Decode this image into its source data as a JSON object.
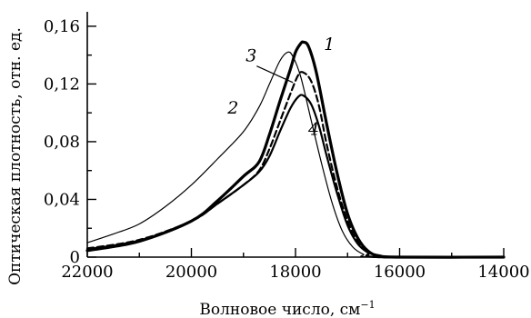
{
  "chart_data": {
    "type": "line",
    "xlabel": "Волновое число, см",
    "xlabel_sup": "−1",
    "ylabel": "Оптическая плотность, отн. ед.",
    "xlim": [
      22000,
      14000
    ],
    "ylim": [
      0,
      0.17
    ],
    "x_ticks": [
      22000,
      20000,
      18000,
      16000,
      14000
    ],
    "x_tick_labels": [
      "22000",
      "20000",
      "18000",
      "16000",
      "14000"
    ],
    "y_ticks": [
      0,
      0.04,
      0.08,
      0.12,
      0.16
    ],
    "y_tick_labels": [
      "0",
      "0,04",
      "0,08",
      "0,12",
      "0,16"
    ],
    "grid": false,
    "series": [
      {
        "name": "1",
        "style": "solid-thick",
        "points": [
          [
            22000,
            0.0045
          ],
          [
            21000,
            0.011
          ],
          [
            20000,
            0.025
          ],
          [
            19500,
            0.039
          ],
          [
            19000,
            0.056
          ],
          [
            18700,
            0.066
          ],
          [
            18500,
            0.085
          ],
          [
            18300,
            0.108
          ],
          [
            18100,
            0.13
          ],
          [
            18000,
            0.142
          ],
          [
            17900,
            0.148
          ],
          [
            17850,
            0.149
          ],
          [
            17750,
            0.146
          ],
          [
            17600,
            0.128
          ],
          [
            17400,
            0.092
          ],
          [
            17200,
            0.058
          ],
          [
            17000,
            0.03
          ],
          [
            16800,
            0.013
          ],
          [
            16600,
            0.004
          ],
          [
            16400,
            0.001
          ],
          [
            16000,
            0.0
          ],
          [
            14000,
            0.0
          ]
        ]
      },
      {
        "name": "2",
        "style": "solid-thin",
        "points": [
          [
            22000,
            0.01
          ],
          [
            21500,
            0.016
          ],
          [
            21000,
            0.023
          ],
          [
            20500,
            0.035
          ],
          [
            20000,
            0.05
          ],
          [
            19500,
            0.068
          ],
          [
            19000,
            0.087
          ],
          [
            18700,
            0.104
          ],
          [
            18500,
            0.12
          ],
          [
            18300,
            0.136
          ],
          [
            18150,
            0.142
          ],
          [
            18050,
            0.139
          ],
          [
            17900,
            0.125
          ],
          [
            17700,
            0.095
          ],
          [
            17500,
            0.065
          ],
          [
            17300,
            0.038
          ],
          [
            17100,
            0.018
          ],
          [
            16900,
            0.007
          ],
          [
            16700,
            0.002
          ],
          [
            16500,
            0.0
          ],
          [
            14000,
            0.0
          ]
        ]
      },
      {
        "name": "3",
        "style": "dashed",
        "points": [
          [
            22000,
            0.006
          ],
          [
            21000,
            0.012
          ],
          [
            20000,
            0.025
          ],
          [
            19500,
            0.037
          ],
          [
            19000,
            0.05
          ],
          [
            18700,
            0.06
          ],
          [
            18500,
            0.075
          ],
          [
            18300,
            0.094
          ],
          [
            18100,
            0.113
          ],
          [
            17950,
            0.126
          ],
          [
            17850,
            0.128
          ],
          [
            17700,
            0.122
          ],
          [
            17550,
            0.105
          ],
          [
            17400,
            0.078
          ],
          [
            17200,
            0.048
          ],
          [
            17000,
            0.025
          ],
          [
            16800,
            0.01
          ],
          [
            16600,
            0.003
          ],
          [
            16400,
            0.0
          ],
          [
            14000,
            0.0
          ]
        ]
      },
      {
        "name": "4",
        "style": "solid",
        "points": [
          [
            22000,
            0.0055
          ],
          [
            21000,
            0.0115
          ],
          [
            20000,
            0.025
          ],
          [
            19500,
            0.037
          ],
          [
            19000,
            0.05
          ],
          [
            18700,
            0.059
          ],
          [
            18500,
            0.07
          ],
          [
            18300,
            0.087
          ],
          [
            18100,
            0.103
          ],
          [
            17950,
            0.111
          ],
          [
            17850,
            0.112
          ],
          [
            17700,
            0.106
          ],
          [
            17550,
            0.091
          ],
          [
            17400,
            0.07
          ],
          [
            17200,
            0.044
          ],
          [
            17000,
            0.022
          ],
          [
            16800,
            0.009
          ],
          [
            16600,
            0.003
          ],
          [
            16400,
            0.0
          ],
          [
            14000,
            0.0
          ]
        ]
      }
    ],
    "annotations": [
      {
        "text": "1",
        "x": 17350,
        "y": 0.148
      },
      {
        "text": "2",
        "x": 19200,
        "y": 0.104
      },
      {
        "text": "3",
        "x": 18850,
        "y": 0.14
      },
      {
        "text": "4",
        "x": 17650,
        "y": 0.089
      }
    ]
  }
}
